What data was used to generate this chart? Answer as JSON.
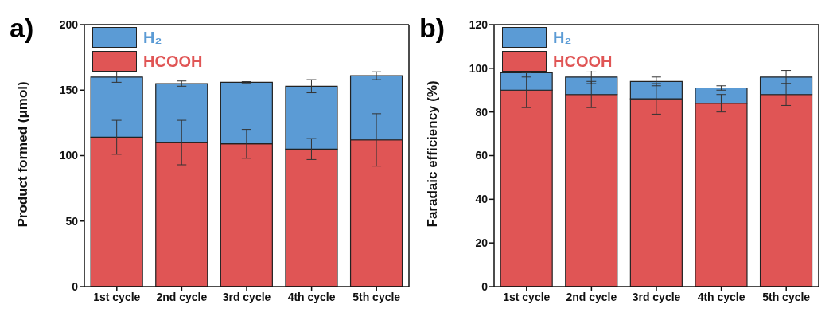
{
  "chart_data": [
    {
      "type": "bar",
      "title": "a)",
      "ylabel": "Product formed (μmol)",
      "categories": [
        "1st cycle",
        "2nd cycle",
        "3rd cycle",
        "4th cycle",
        "5th cycle"
      ],
      "stacked": true,
      "series": [
        {
          "name": "HCOOH",
          "color": "#e05555",
          "values": [
            114,
            110,
            109,
            105,
            112
          ],
          "errors": [
            13,
            17,
            11,
            8,
            20
          ]
        },
        {
          "name": "H₂",
          "color": "#5b9bd5",
          "values": [
            46,
            45,
            47,
            48,
            49
          ],
          "errors": [
            4,
            2,
            0.5,
            5,
            3
          ]
        }
      ],
      "ylim": [
        0,
        200
      ],
      "yticks": [
        0,
        50,
        100,
        150,
        200
      ],
      "grid": false,
      "legend": "top left"
    },
    {
      "type": "bar",
      "title": "b)",
      "ylabel": "Faradaic efficiency (%)",
      "categories": [
        "1st cycle",
        "2nd cycle",
        "3rd cycle",
        "4th cycle",
        "5th cycle"
      ],
      "stacked": true,
      "series": [
        {
          "name": "HCOOH",
          "color": "#e05555",
          "values": [
            90,
            88,
            86,
            84,
            88
          ],
          "errors": [
            8,
            6,
            7,
            4,
            5
          ]
        },
        {
          "name": "H₂",
          "color": "#5b9bd5",
          "values": [
            8,
            8,
            8,
            7,
            8
          ],
          "errors": [
            2,
            3,
            2,
            1,
            3
          ]
        }
      ],
      "ylim": [
        0,
        120
      ],
      "yticks": [
        0,
        20,
        40,
        60,
        80,
        100,
        120
      ],
      "grid": false,
      "legend": "top left"
    }
  ]
}
